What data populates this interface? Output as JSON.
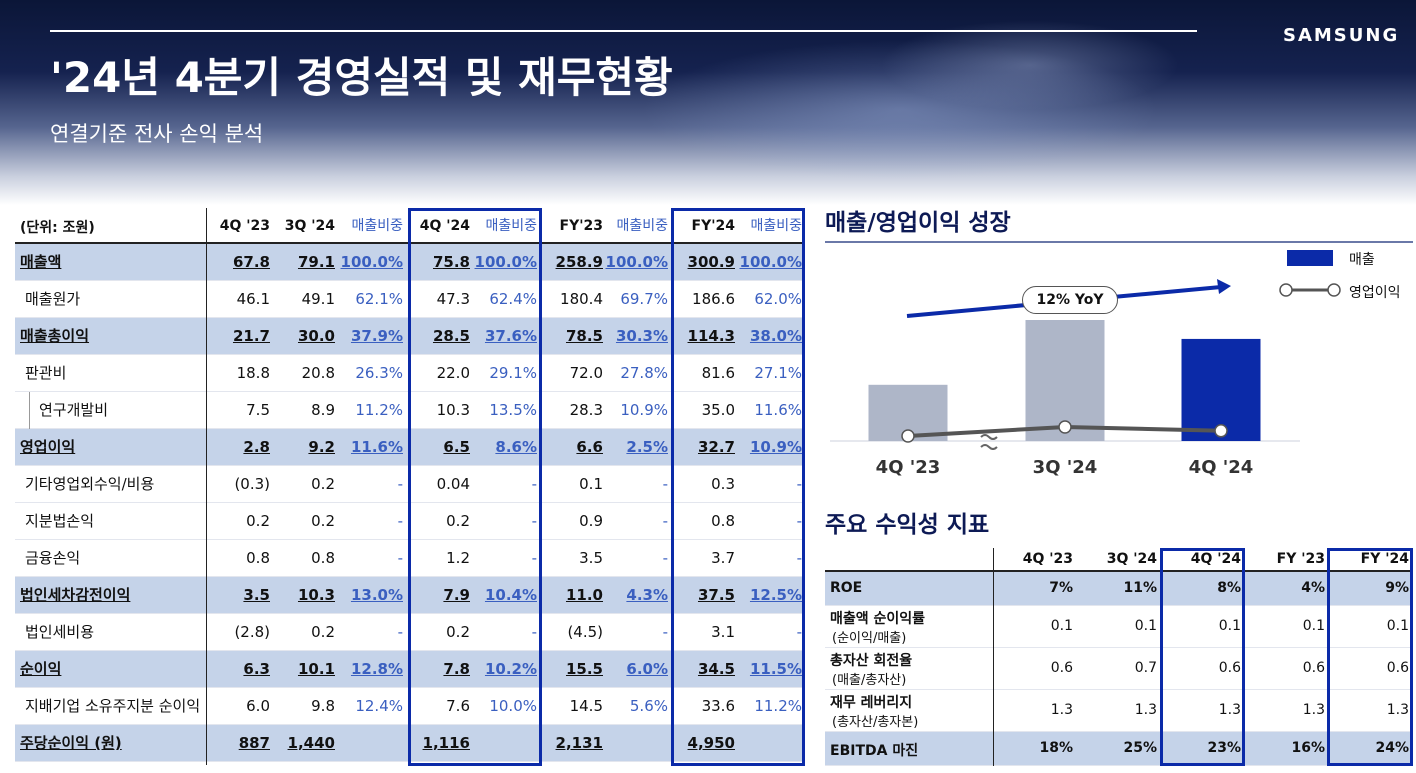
{
  "header": {
    "title": "'24년 4분기 경영실적 및 재무현황",
    "subtitle": "연결기준 전사 손익 분석",
    "logo": "SAMSUNG"
  },
  "income_table": {
    "unit_label": "(단위: 조원)",
    "columns": [
      "4Q '23",
      "3Q '24",
      "매출비중",
      "4Q '24",
      "매출비중",
      "FY'23",
      "매출비중",
      "FY'24",
      "매출비중"
    ],
    "rows": [
      {
        "label": "매출액",
        "highlight": true,
        "values": [
          "67.8",
          "79.1",
          "100.0%",
          "75.8",
          "100.0%",
          "258.9",
          "100.0%",
          "300.9",
          "100.0%"
        ]
      },
      {
        "label": "매출원가",
        "highlight": false,
        "values": [
          "46.1",
          "49.1",
          "62.1%",
          "47.3",
          "62.4%",
          "180.4",
          "69.7%",
          "186.6",
          "62.0%"
        ]
      },
      {
        "label": "매출총이익",
        "highlight": true,
        "values": [
          "21.7",
          "30.0",
          "37.9%",
          "28.5",
          "37.6%",
          "78.5",
          "30.3%",
          "114.3",
          "38.0%"
        ]
      },
      {
        "label": "판관비",
        "highlight": false,
        "values": [
          "18.8",
          "20.8",
          "26.3%",
          "22.0",
          "29.1%",
          "72.0",
          "27.8%",
          "81.6",
          "27.1%"
        ]
      },
      {
        "label": "연구개발비",
        "highlight": false,
        "sub": true,
        "values": [
          "7.5",
          "8.9",
          "11.2%",
          "10.3",
          "13.5%",
          "28.3",
          "10.9%",
          "35.0",
          "11.6%"
        ]
      },
      {
        "label": "영업이익",
        "highlight": true,
        "values": [
          "2.8",
          "9.2",
          "11.6%",
          "6.5",
          "8.6%",
          "6.6",
          "2.5%",
          "32.7",
          "10.9%"
        ]
      },
      {
        "label": "기타영업외수익/비용",
        "highlight": false,
        "values": [
          "(0.3)",
          "0.2",
          "-",
          "0.04",
          "-",
          "0.1",
          "-",
          "0.3",
          "-"
        ]
      },
      {
        "label": "지분법손익",
        "highlight": false,
        "values": [
          "0.2",
          "0.2",
          "-",
          "0.2",
          "-",
          "0.9",
          "-",
          "0.8",
          "-"
        ]
      },
      {
        "label": "금융손익",
        "highlight": false,
        "values": [
          "0.8",
          "0.8",
          "-",
          "1.2",
          "-",
          "3.5",
          "-",
          "3.7",
          "-"
        ]
      },
      {
        "label": "법인세차감전이익",
        "highlight": true,
        "values": [
          "3.5",
          "10.3",
          "13.0%",
          "7.9",
          "10.4%",
          "11.0",
          "4.3%",
          "37.5",
          "12.5%"
        ]
      },
      {
        "label": "법인세비용",
        "highlight": false,
        "values": [
          "(2.8)",
          "0.2",
          "-",
          "0.2",
          "-",
          "(4.5)",
          "-",
          "3.1",
          "-"
        ]
      },
      {
        "label": "순이익",
        "highlight": true,
        "values": [
          "6.3",
          "10.1",
          "12.8%",
          "7.8",
          "10.2%",
          "15.5",
          "6.0%",
          "34.5",
          "11.5%"
        ]
      },
      {
        "label": "지배기업 소유주지분 순이익",
        "highlight": false,
        "values": [
          "6.0",
          "9.8",
          "12.4%",
          "7.6",
          "10.0%",
          "14.5",
          "5.6%",
          "33.6",
          "11.2%"
        ]
      },
      {
        "label": "주당순이익 (원)",
        "highlight": true,
        "values": [
          "887",
          "1,440",
          "",
          "1,116",
          "",
          "2,131",
          "",
          "4,950",
          ""
        ]
      }
    ]
  },
  "growth_chart": {
    "section_title": "매출/영업이익 성장",
    "legend": [
      {
        "name": "매출",
        "color": "#0b2aa8",
        "icon": "bar-swatch"
      },
      {
        "name": "영업이익",
        "color": "#555555",
        "icon": "line-marker"
      }
    ],
    "annotation": "12% YoY",
    "break_mark": "≈"
  },
  "chart_data": {
    "type": "bar",
    "title": "매출/영업이익 성장",
    "categories": [
      "4Q '23",
      "3Q '24",
      "4Q '24"
    ],
    "series": [
      {
        "name": "매출",
        "type": "bar",
        "values": [
          67.8,
          79.1,
          75.8
        ],
        "colors": [
          "#aeb6c8",
          "#aeb6c8",
          "#0b2aa8"
        ]
      },
      {
        "name": "영업이익",
        "type": "line",
        "values": [
          2.8,
          9.2,
          6.5
        ],
        "color": "#555555"
      }
    ],
    "annotation": "12% YoY",
    "legend_position": "top-right",
    "grid": false
  },
  "ratio_table": {
    "section_title": "주요 수익성 지표",
    "columns": [
      "4Q '23",
      "3Q '24",
      "4Q '24",
      "FY '23",
      "FY '24"
    ],
    "rows": [
      {
        "label": "ROE",
        "sub": "",
        "highlight": true,
        "values": [
          "7%",
          "11%",
          "8%",
          "4%",
          "9%"
        ]
      },
      {
        "label": "매출액 순이익률",
        "sub": "(순이익/매출)",
        "highlight": false,
        "values": [
          "0.1",
          "0.1",
          "0.1",
          "0.1",
          "0.1"
        ]
      },
      {
        "label": "총자산 회전율",
        "sub": "(매출/총자산)",
        "highlight": false,
        "values": [
          "0.6",
          "0.7",
          "0.6",
          "0.6",
          "0.6"
        ]
      },
      {
        "label": "재무 레버리지",
        "sub": "(총자산/총자본)",
        "highlight": false,
        "values": [
          "1.3",
          "1.3",
          "1.3",
          "1.3",
          "1.3"
        ]
      },
      {
        "label": "EBITDA 마진",
        "sub": "",
        "highlight": true,
        "values": [
          "18%",
          "25%",
          "23%",
          "16%",
          "24%"
        ]
      }
    ]
  },
  "colors": {
    "accent": "#0b2aa8",
    "highlight_row": "#c5d3e9",
    "pct_text": "#3a5fc0",
    "title_navy": "#0d1a55"
  }
}
